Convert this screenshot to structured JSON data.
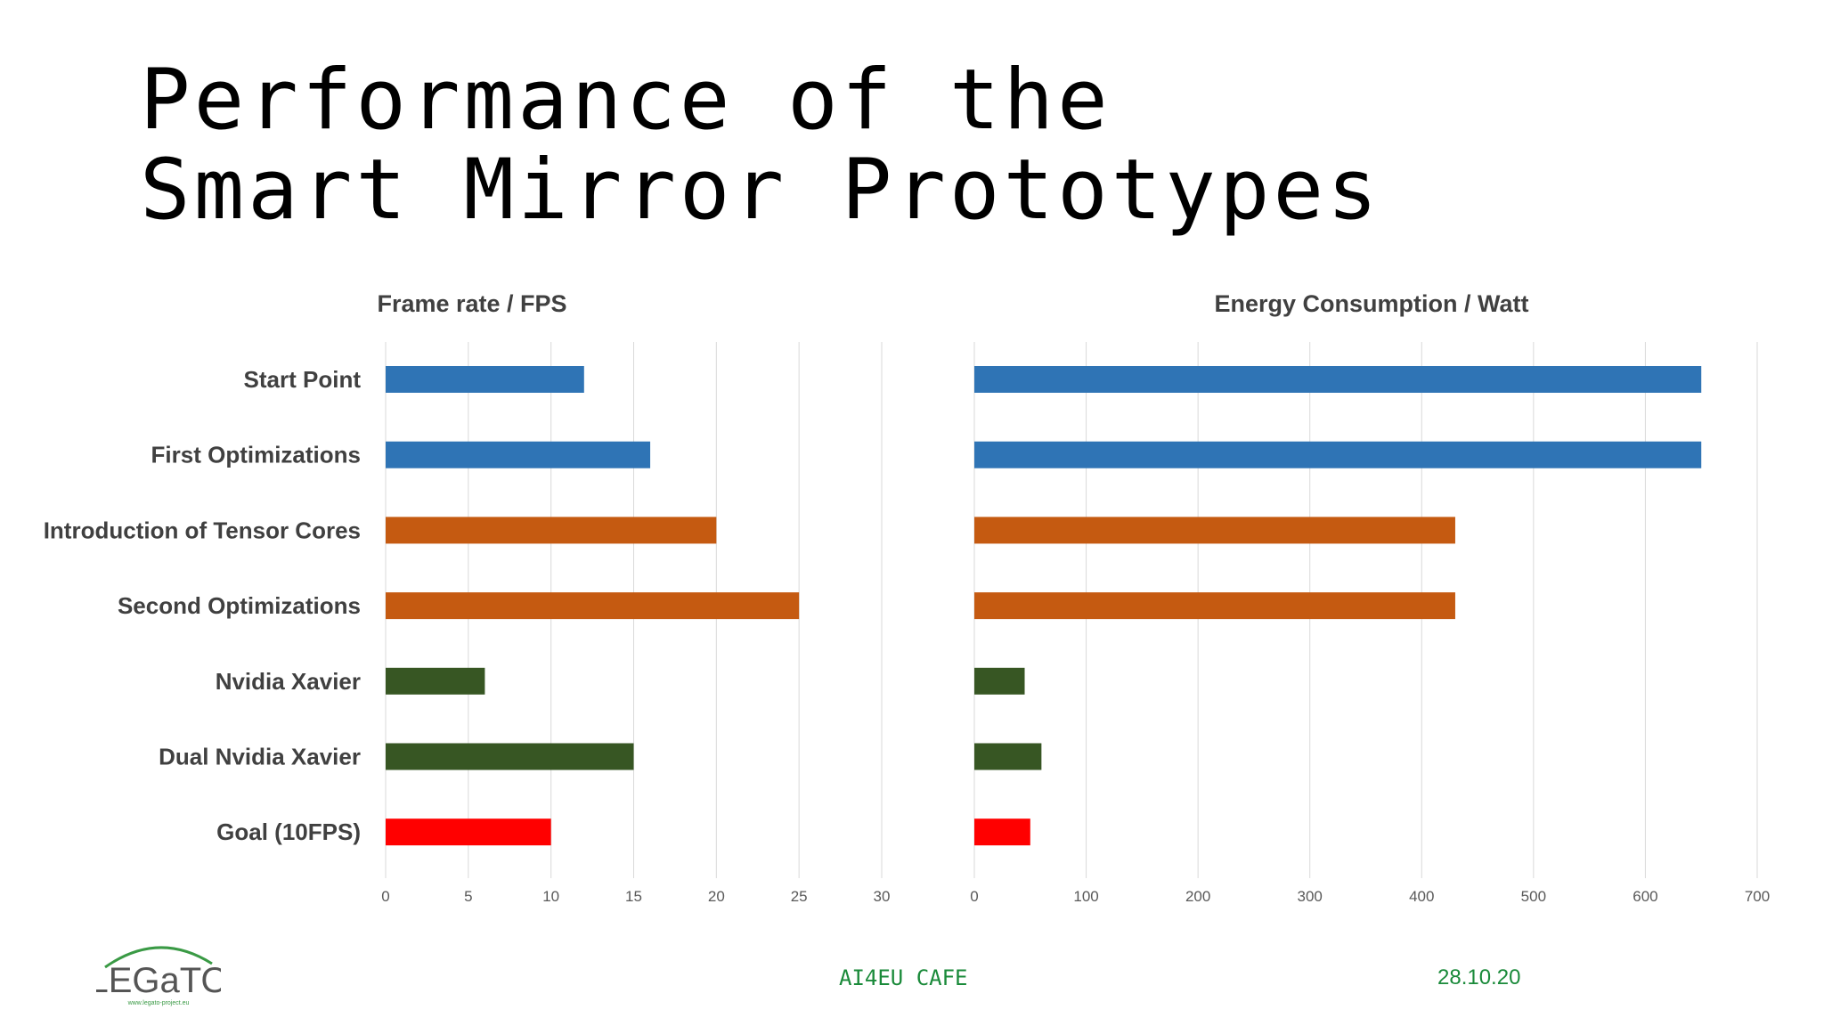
{
  "slide": {
    "title_line1": "Performance of the",
    "title_line2": "Smart Mirror Prototypes"
  },
  "footer": {
    "event": "AI4EU CAFE",
    "date": "28.10.20",
    "logo_text": "LEGaTO",
    "logo_url_text": "www.legato-project.eu"
  },
  "colors": {
    "blue": "#2f74b5",
    "orange": "#c55a11",
    "green": "#375623",
    "red": "#ff0000",
    "text": "#404040",
    "grid": "#d9d9d9"
  },
  "chart_data": [
    {
      "type": "bar",
      "orientation": "horizontal",
      "title": "Frame rate / FPS",
      "categories": [
        "Start Point",
        "First Optimizations",
        "Introduction of Tensor Cores",
        "Second Optimizations",
        "Nvidia Xavier",
        "Dual Nvidia Xavier",
        "Goal (10FPS)"
      ],
      "values": [
        12,
        16,
        20,
        25,
        6,
        15,
        10
      ],
      "bar_colors": [
        "#2f74b5",
        "#2f74b5",
        "#c55a11",
        "#c55a11",
        "#375623",
        "#375623",
        "#ff0000"
      ],
      "xlim": [
        0,
        30
      ],
      "xticks": [
        0,
        5,
        10,
        15,
        20,
        25,
        30
      ],
      "grid": true
    },
    {
      "type": "bar",
      "orientation": "horizontal",
      "title": "Energy Consumption / Watt",
      "categories": [
        "Start Point",
        "First Optimizations",
        "Introduction of Tensor Cores",
        "Second Optimizations",
        "Nvidia Xavier",
        "Dual Nvidia Xavier",
        "Goal (10FPS)"
      ],
      "values": [
        650,
        650,
        430,
        430,
        45,
        60,
        50
      ],
      "bar_colors": [
        "#2f74b5",
        "#2f74b5",
        "#c55a11",
        "#c55a11",
        "#375623",
        "#375623",
        "#ff0000"
      ],
      "xlim": [
        0,
        700
      ],
      "xticks": [
        0,
        100,
        200,
        300,
        400,
        500,
        600,
        700
      ],
      "grid": true
    }
  ]
}
